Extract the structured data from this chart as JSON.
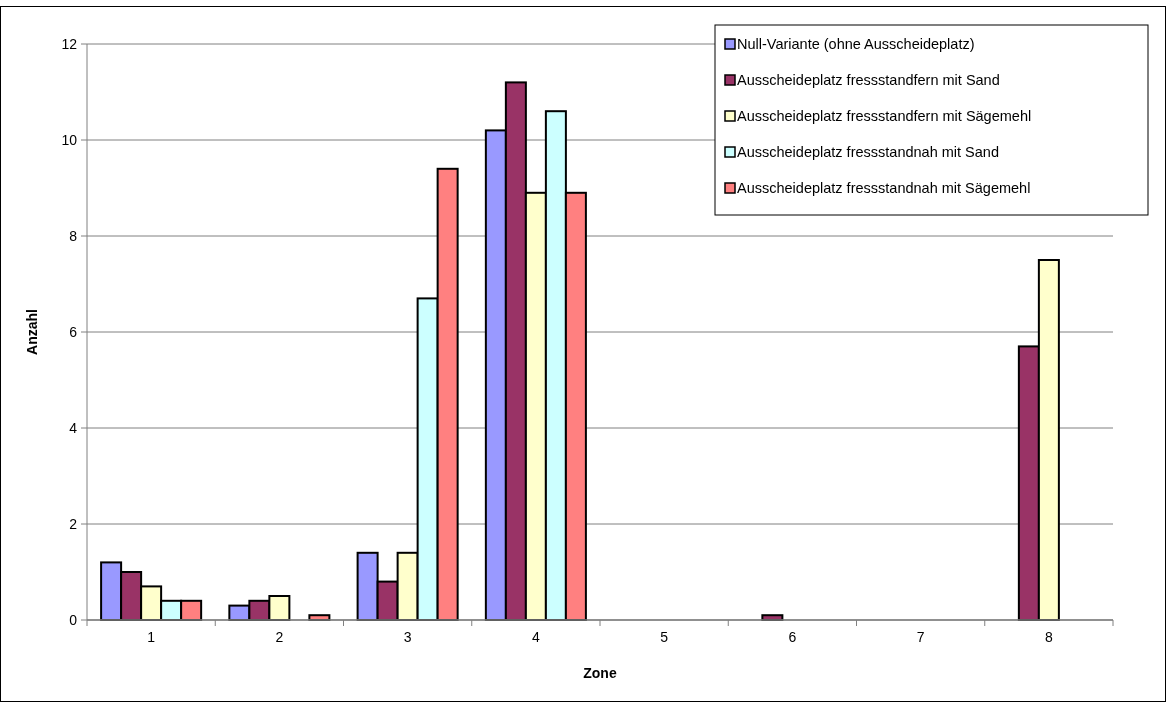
{
  "chart_data": {
    "type": "bar",
    "xlabel": "Zone",
    "ylabel": "Anzahl",
    "categories": [
      "1",
      "2",
      "3",
      "4",
      "5",
      "6",
      "7",
      "8"
    ],
    "series": [
      {
        "name": "Null-Variante (ohne Ausscheideplatz)",
        "color": "#9999ff",
        "values": [
          1.2,
          0.3,
          1.4,
          10.2,
          0,
          0,
          0,
          0
        ]
      },
      {
        "name": "Ausscheideplatz fressstandfern mit Sand",
        "color": "#993366",
        "values": [
          1.0,
          0.4,
          0.8,
          11.2,
          0,
          0.1,
          0,
          5.7
        ]
      },
      {
        "name": "Ausscheideplatz fressstandfern mit Sägemehl",
        "color": "#ffffcc",
        "values": [
          0.7,
          0.5,
          1.4,
          8.9,
          0,
          0,
          0,
          7.5
        ]
      },
      {
        "name": "Ausscheideplatz fressstandnah mit Sand",
        "color": "#ccffff",
        "values": [
          0.4,
          0,
          6.7,
          10.6,
          0,
          0,
          0,
          0
        ]
      },
      {
        "name": "Ausscheideplatz fressstandnah mit Sägemehl",
        "color": "#ff8080",
        "values": [
          0.4,
          0.1,
          9.4,
          8.9,
          0,
          0,
          0,
          0
        ]
      }
    ],
    "ylim": [
      0,
      12
    ],
    "yticks": [
      0,
      2,
      4,
      6,
      8,
      10,
      12
    ],
    "grid": "y",
    "legend": "top right"
  }
}
